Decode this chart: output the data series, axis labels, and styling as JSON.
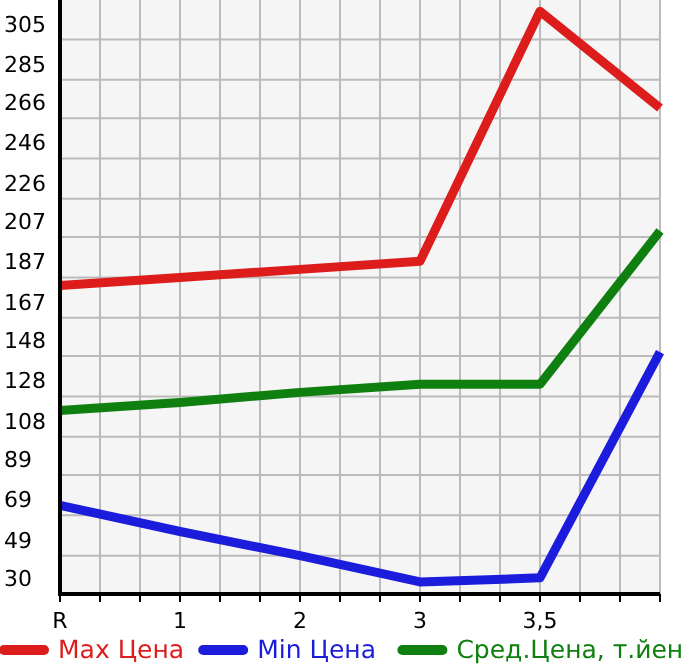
{
  "chart_data": {
    "type": "line",
    "categories": [
      "R",
      "1",
      "2",
      "3",
      "3,5",
      null
    ],
    "ylim": [
      30,
      324.6
    ],
    "yticks": [
      30,
      49,
      69,
      89,
      108,
      128,
      148,
      167,
      187,
      207,
      226,
      246,
      266,
      285,
      305
    ],
    "grid": true,
    "legend": "bottom",
    "marker": "none",
    "line_style": "solid",
    "series": [
      {
        "name": "Max Цена",
        "color": "#dd1c1c",
        "values": [
          183,
          187,
          191,
          195,
          319,
          271
        ]
      },
      {
        "name": "Min Цена",
        "color": "#1c1cdd",
        "values": [
          74,
          61,
          49,
          36,
          38,
          150
        ]
      },
      {
        "name": "Сред.Цена, т.йен",
        "color": "#0f800f",
        "values": [
          121,
          125,
          130,
          134,
          134,
          210
        ]
      }
    ]
  }
}
